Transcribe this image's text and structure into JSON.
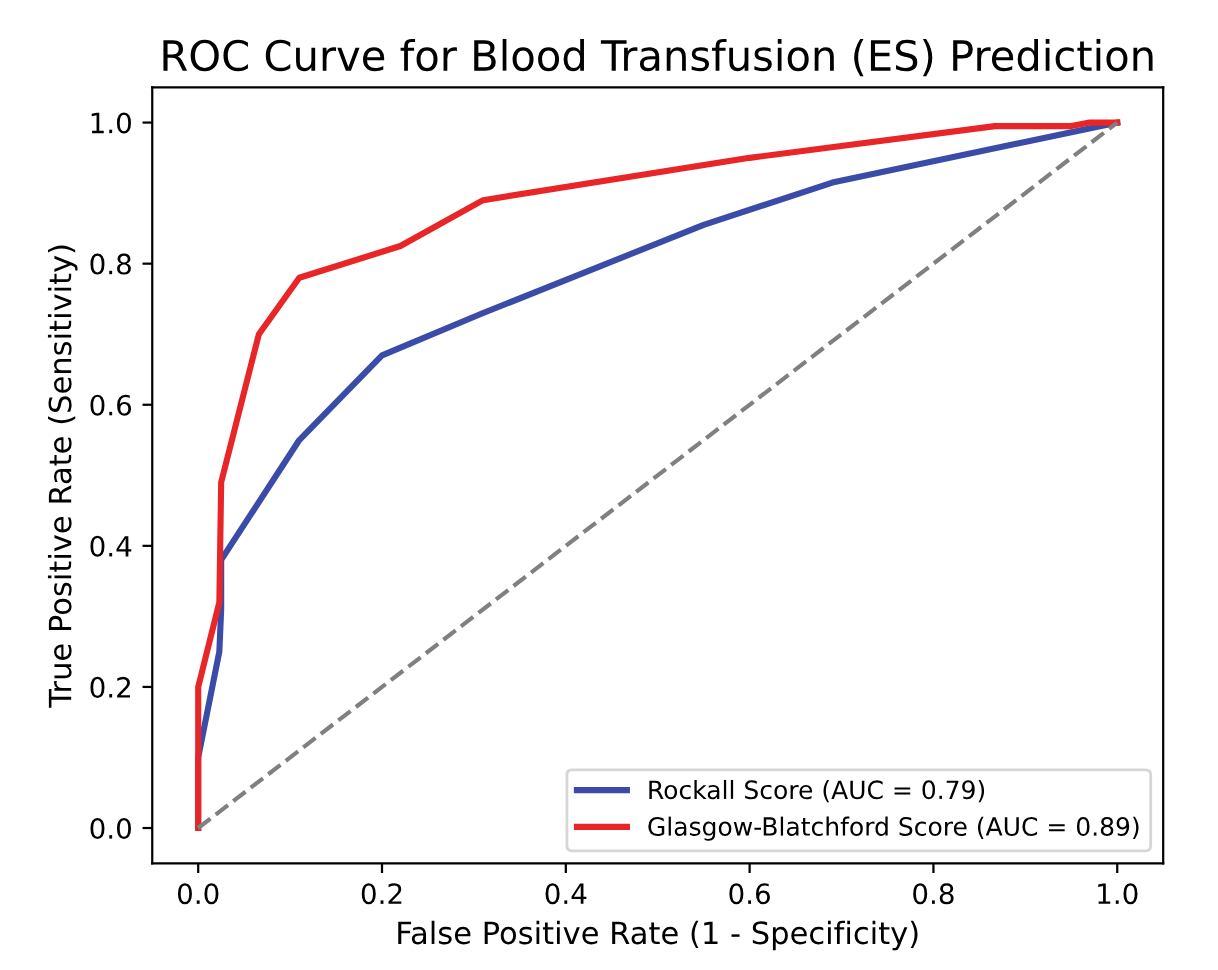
{
  "chart_data": {
    "type": "line",
    "title": "ROC Curve for Blood Transfusion (ES) Prediction",
    "xlabel": "False Positive Rate (1 - Specificity)",
    "ylabel": "True Positive Rate (Sensitivity)",
    "series": [
      {
        "name": "Rockall Score (AUC = 0.79)",
        "color": "#3b4ba8",
        "x": [
          0,
          0,
          0.023,
          0.025,
          0.025,
          0.11,
          0.2,
          0.31,
          0.55,
          0.69,
          1
        ],
        "values": [
          0,
          0.1,
          0.25,
          0.31,
          0.38,
          0.55,
          0.67,
          0.73,
          0.855,
          0.915,
          1
        ]
      },
      {
        "name": "Glasgow-Blatchford Score (AUC = 0.89)",
        "color": "#e82628",
        "x": [
          0,
          0,
          0.023,
          0.025,
          0.066,
          0.11,
          0.22,
          0.31,
          0.6,
          0.867,
          0.95,
          0.97,
          1
        ],
        "values": [
          0,
          0.2,
          0.32,
          0.49,
          0.7,
          0.78,
          0.825,
          0.89,
          0.95,
          0.995,
          0.995,
          1,
          1
        ]
      },
      {
        "type": "line",
        "color": "#808080",
        "line_style": "dashed",
        "x": [
          0,
          1
        ],
        "values": [
          0,
          1
        ]
      }
    ],
    "xlim": [
      -0.05,
      1.05
    ],
    "ylim": [
      -0.05,
      1.05
    ],
    "xticks": [
      {
        "value": 0,
        "label": "0.0"
      },
      0.2,
      0.4,
      0.6,
      0.8,
      {
        "value": 1,
        "label": "1.0"
      }
    ],
    "yticks": [
      {
        "value": 0,
        "label": "0.0"
      },
      0.2,
      0.4,
      0.6,
      0.8,
      {
        "value": 1,
        "label": "1.0"
      }
    ],
    "grid": false,
    "legend": "bottom right",
    "marker": "none",
    "line_style": "solid"
  }
}
